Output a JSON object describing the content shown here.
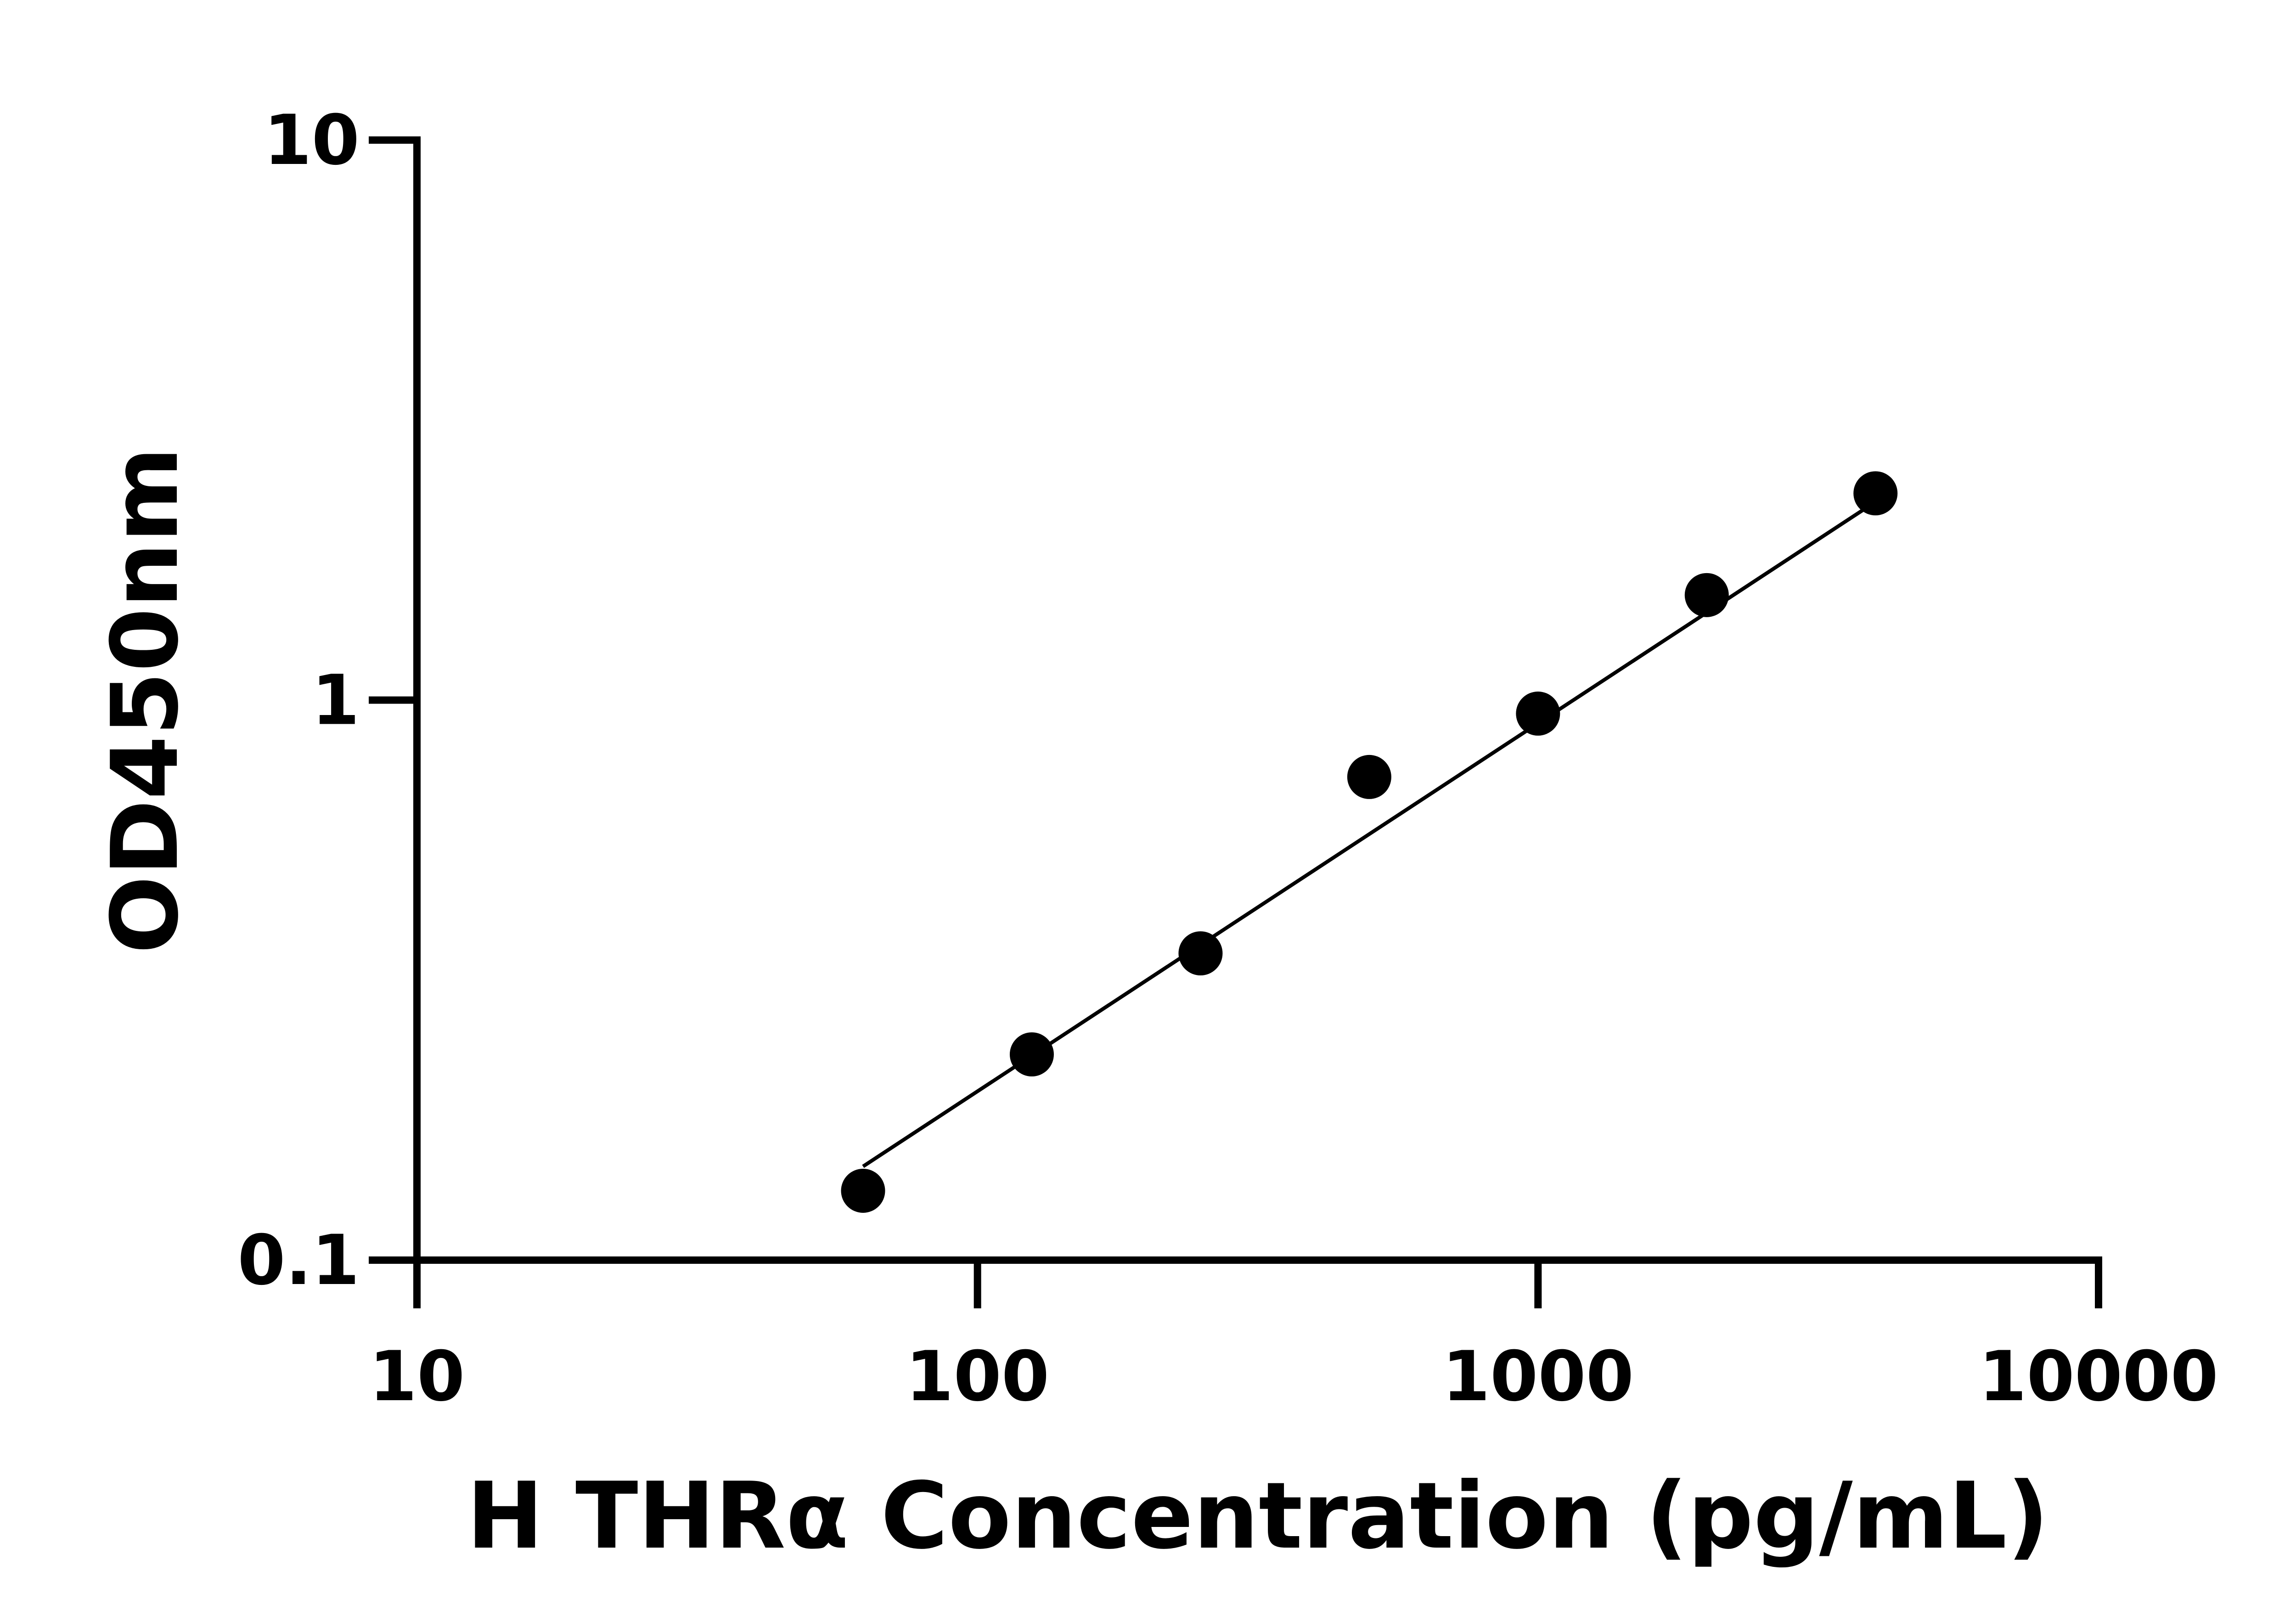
{
  "chart_data": {
    "type": "scatter",
    "x_label": "H THRα Concentration (pg/mL)",
    "y_label": "OD450nm",
    "xscale": "log",
    "yscale": "log",
    "xlim": [
      10,
      10000
    ],
    "ylim": [
      0.1,
      10
    ],
    "xticks": [
      10,
      100,
      1000,
      10000
    ],
    "yticks": [
      0.1,
      1,
      10
    ],
    "grid": false,
    "series": [
      {
        "mode": "markers",
        "color": "#000000",
        "x": [
          62.5,
          125,
          250,
          500,
          1000,
          2000,
          4000
        ],
        "values": [
          0.133,
          0.233,
          0.353,
          0.729,
          0.946,
          1.54,
          2.34
        ]
      },
      {
        "mode": "line",
        "color": "#000000",
        "x": [
          62.5,
          4000
        ],
        "values": [
          0.147,
          2.26
        ]
      }
    ]
  }
}
